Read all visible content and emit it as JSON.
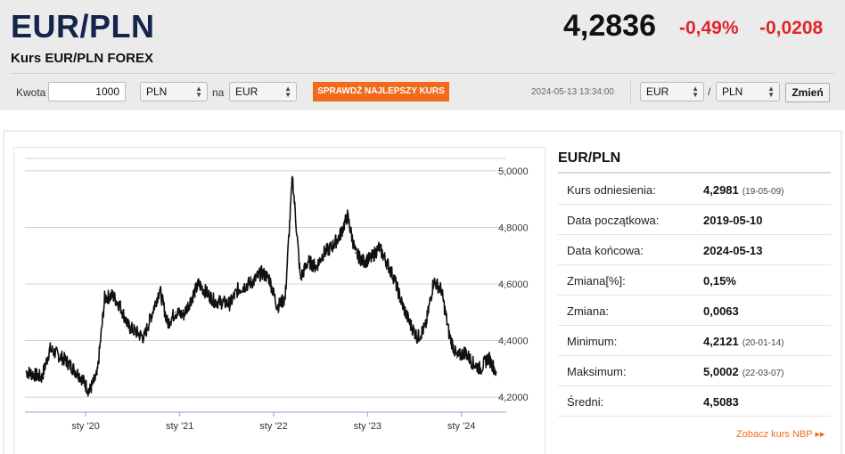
{
  "header": {
    "pair": "EUR/PLN",
    "subtitle": "Kurs EUR/PLN FOREX",
    "price": "4,2836",
    "change_pct": "-0,49%",
    "change_abs": "-0,0208"
  },
  "converter": {
    "amount_label": "Kwota",
    "amount_value": "1000",
    "from_currency": "PLN",
    "to_label": "na",
    "to_currency": "EUR",
    "button_label": "SPRAWDŹ NAJLEPSZY KURS"
  },
  "timestamp": "2024-05-13 13:34:00",
  "pair_selector": {
    "base": "EUR",
    "slash": "/",
    "quote": "PLN",
    "button_label": "Zmień"
  },
  "colors": {
    "accent_orange": "#f26a1b",
    "negative_red": "#e0252d",
    "title_navy": "#14244a",
    "grid": "#c9d4e6"
  },
  "chart_data": {
    "type": "line",
    "title": "",
    "xlabel": "",
    "ylabel": "",
    "x_ticks": [
      "sty '20",
      "sty '21",
      "sty '22",
      "sty '23",
      "sty '24"
    ],
    "y_ticks": [
      "4,2000",
      "4,4000",
      "4,6000",
      "4,8000",
      "5,0000"
    ],
    "ylim": [
      4.15,
      5.05
    ],
    "grid": true,
    "series": [
      {
        "x": [
          "2019-05",
          "2019-07",
          "2019-08",
          "2019-10",
          "2019-12",
          "2020-01",
          "2020-02",
          "2020-03",
          "2020-04",
          "2020-05",
          "2020-06",
          "2020-08",
          "2020-10",
          "2020-11",
          "2020-12",
          "2021-01",
          "2021-03",
          "2021-05",
          "2021-07",
          "2021-08",
          "2021-10",
          "2021-11",
          "2021-12",
          "2022-01",
          "2022-02",
          "2022-03",
          "2022-04",
          "2022-05",
          "2022-06",
          "2022-07",
          "2022-08",
          "2022-09",
          "2022-10",
          "2022-11",
          "2022-12",
          "2023-01",
          "2023-02",
          "2023-03",
          "2023-04",
          "2023-05",
          "2023-06",
          "2023-07",
          "2023-08",
          "2023-09",
          "2023-10",
          "2023-11",
          "2023-12",
          "2024-01",
          "2024-02",
          "2024-03",
          "2024-04",
          "2024-05"
        ],
        "values": [
          4.29,
          4.27,
          4.37,
          4.33,
          4.27,
          4.22,
          4.28,
          4.55,
          4.56,
          4.52,
          4.45,
          4.41,
          4.58,
          4.46,
          4.5,
          4.49,
          4.6,
          4.54,
          4.53,
          4.58,
          4.61,
          4.64,
          4.62,
          4.52,
          4.55,
          4.98,
          4.62,
          4.68,
          4.66,
          4.71,
          4.73,
          4.77,
          4.84,
          4.71,
          4.68,
          4.69,
          4.73,
          4.68,
          4.62,
          4.53,
          4.46,
          4.41,
          4.45,
          4.61,
          4.58,
          4.42,
          4.34,
          4.36,
          4.32,
          4.3,
          4.34,
          4.29
        ]
      }
    ]
  },
  "info": {
    "title": "EUR/PLN",
    "rows": [
      {
        "label": "Kurs odniesienia:",
        "value": "4,2981",
        "date": "(19-05-09)"
      },
      {
        "label": "Data początkowa:",
        "value": "2019-05-10",
        "date": ""
      },
      {
        "label": "Data końcowa:",
        "value": "2024-05-13",
        "date": ""
      },
      {
        "label": "Zmiana[%]:",
        "value": "0,15%",
        "date": ""
      },
      {
        "label": "Zmiana:",
        "value": "0,0063",
        "date": ""
      },
      {
        "label": "Minimum:",
        "value": "4,2121",
        "date": "(20-01-14)"
      },
      {
        "label": "Maksimum:",
        "value": "5,0002",
        "date": "(22-03-07)"
      },
      {
        "label": "Średni:",
        "value": "4,5083",
        "date": ""
      }
    ],
    "nbp_link": "Zobacz kurs NBP ▸▸"
  }
}
